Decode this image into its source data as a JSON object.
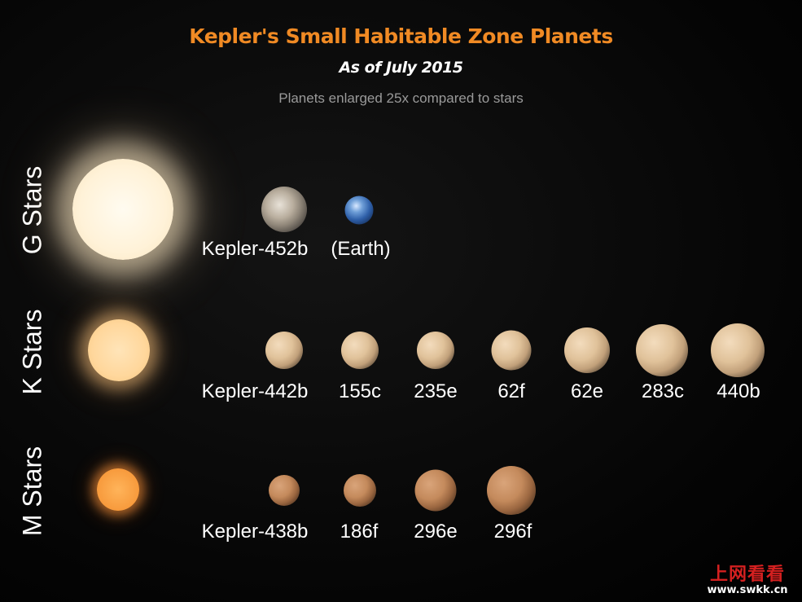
{
  "title": "Kepler's Small Habitable Zone Planets",
  "subtitle": "As of July 2015",
  "note": "Planets enlarged 25x compared to stars",
  "rows": [
    {
      "label": "G Stars",
      "planets": [
        {
          "label": "Kepler-452b"
        },
        {
          "label": "(Earth)"
        }
      ]
    },
    {
      "label": "K Stars",
      "planets": [
        {
          "label": "Kepler-442b"
        },
        {
          "label": "155c"
        },
        {
          "label": "235e"
        },
        {
          "label": "62f"
        },
        {
          "label": "62e"
        },
        {
          "label": "283c"
        },
        {
          "label": "440b"
        }
      ]
    },
    {
      "label": "M Stars",
      "planets": [
        {
          "label": "Kepler-438b"
        },
        {
          "label": "186f"
        },
        {
          "label": "296e"
        },
        {
          "label": "296f"
        }
      ]
    }
  ],
  "watermark": {
    "name": "上网看看",
    "url": "www.swkk.cn"
  },
  "colors": {
    "title": "#f08a24",
    "note": "#9a9a9a",
    "watermark": "#d42020"
  }
}
